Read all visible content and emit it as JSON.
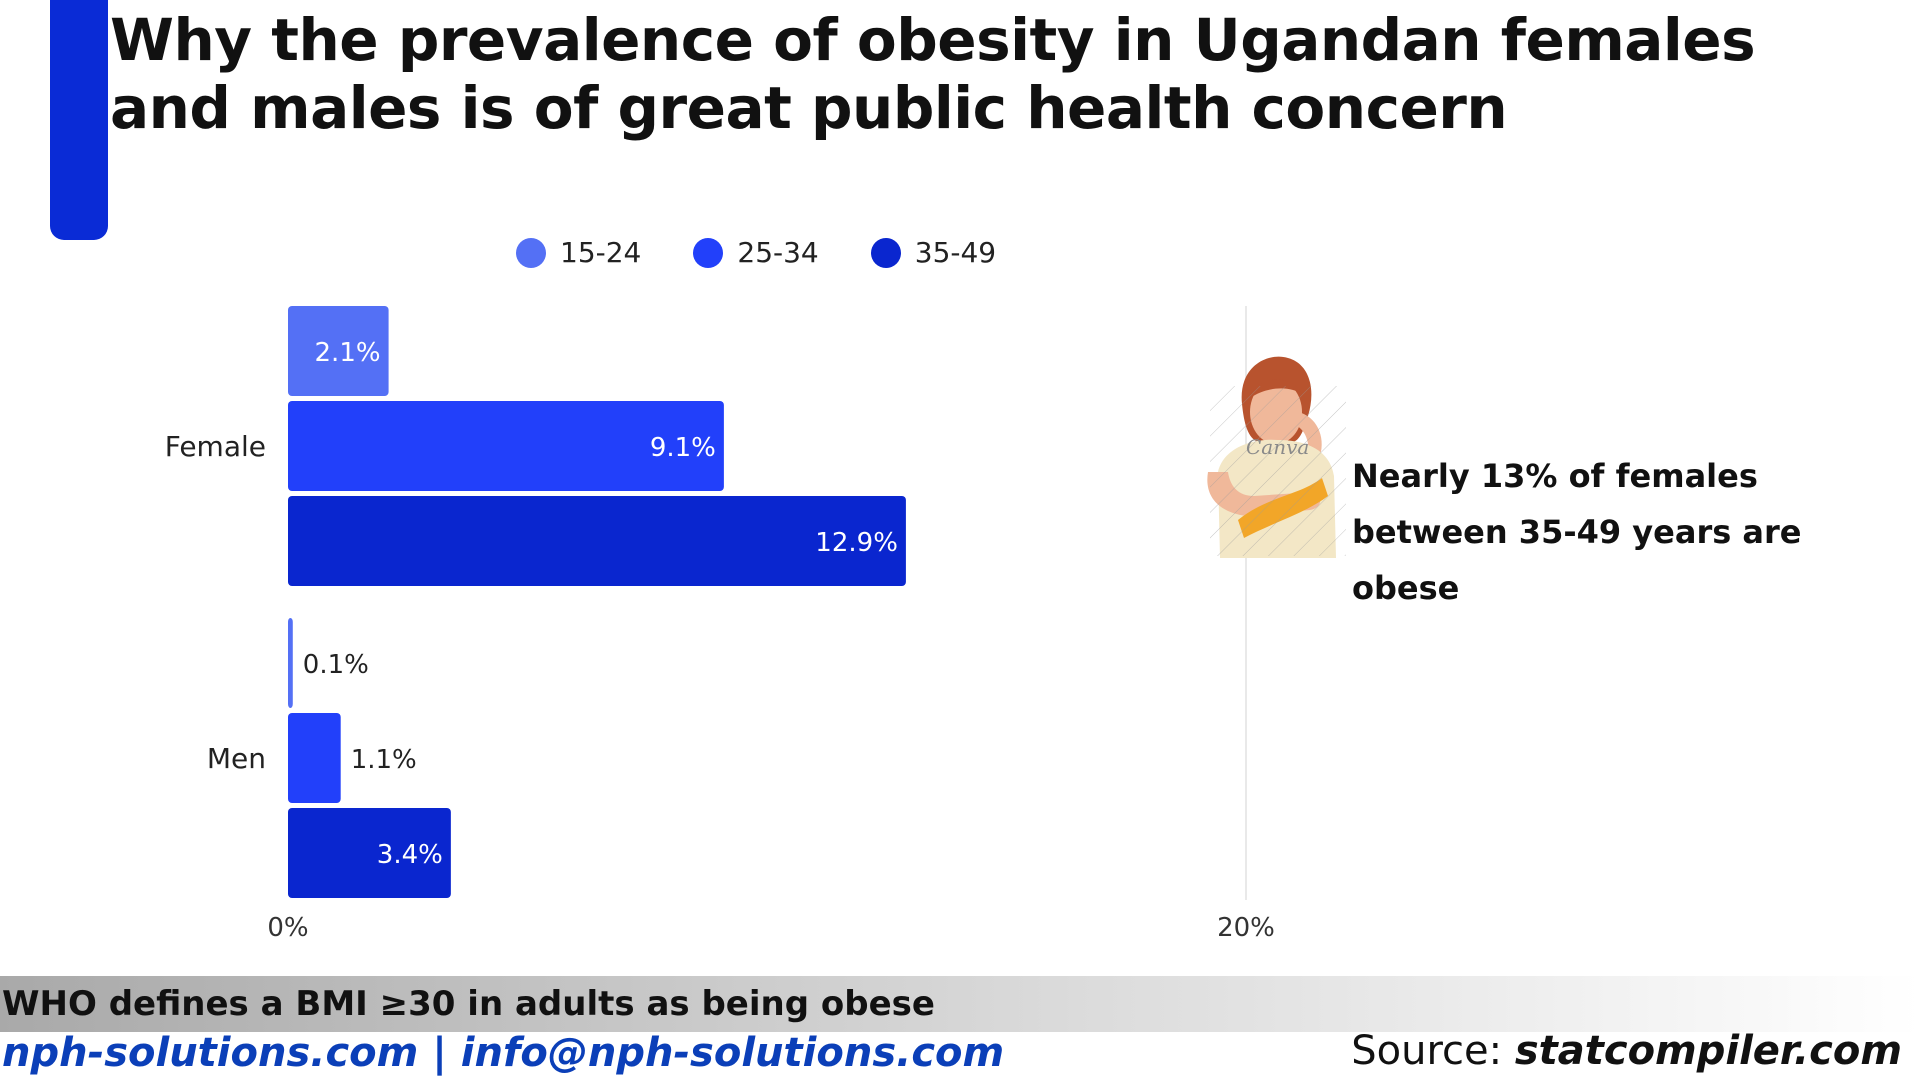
{
  "title": "Why the prevalence of obesity in Ugandan females and males is of great public health concern",
  "callout": "Nearly 13% of females between 35-49 years are obese",
  "illustration": {
    "icon": "woman-measuring-waist-illustration",
    "watermark": "Canva"
  },
  "footer": {
    "who_note": "WHO defines a BMI ≥30 in adults as being obese",
    "contact": "nph-solutions.com | info@nph-solutions.com",
    "source_label": "Source:",
    "source_site": "statcompiler.com"
  },
  "colors": {
    "accent": "#0a2bd6",
    "series": [
      "#5470f5",
      "#2240fa",
      "#0a26cf"
    ]
  },
  "chart_data": {
    "type": "bar",
    "orientation": "horizontal",
    "categories": [
      "Female",
      "Men"
    ],
    "series": [
      {
        "name": "15-24",
        "values": [
          2.1,
          0.1
        ],
        "labels": [
          "2.1%",
          "0.1%"
        ]
      },
      {
        "name": "25-34",
        "values": [
          9.1,
          1.1
        ],
        "labels": [
          "9.1%",
          "1.1%"
        ]
      },
      {
        "name": "35-49",
        "values": [
          12.9,
          3.4
        ],
        "labels": [
          "12.9%",
          "3.4%"
        ]
      }
    ],
    "xlim": [
      0,
      20
    ],
    "xticks": [
      "0%",
      "20%"
    ],
    "legend": "top",
    "unit": "%"
  }
}
